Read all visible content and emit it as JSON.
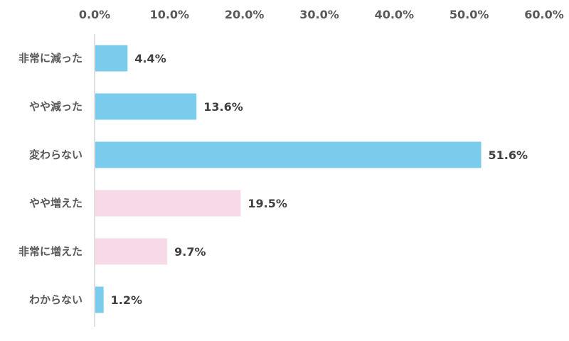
{
  "chart_data": {
    "type": "bar",
    "orientation": "horizontal",
    "title": "",
    "xlabel": "",
    "ylabel": "",
    "xlim": [
      0,
      60
    ],
    "x_ticks": [
      0,
      10,
      20,
      30,
      40,
      50,
      60
    ],
    "x_tick_labels": [
      "0.0%",
      "10.0%",
      "20.0%",
      "30.0%",
      "40.0%",
      "50.0%",
      "60.0%"
    ],
    "axis_position": "top",
    "grid": false,
    "legend": "none",
    "categories": [
      "非常に減った",
      "やや減った",
      "変わらない",
      "やや増えた",
      "非常に増えた",
      "わからない"
    ],
    "values": [
      4.4,
      13.6,
      51.6,
      19.5,
      9.7,
      1.2
    ],
    "data_labels": [
      "4.4%",
      "13.6%",
      "51.6%",
      "19.5%",
      "9.7%",
      "1.2%"
    ],
    "bar_colors": [
      "#7ACBEC",
      "#7ACBEC",
      "#7ACBEC",
      "#F8D9E8",
      "#F8D9E8",
      "#7ACBEC"
    ]
  }
}
